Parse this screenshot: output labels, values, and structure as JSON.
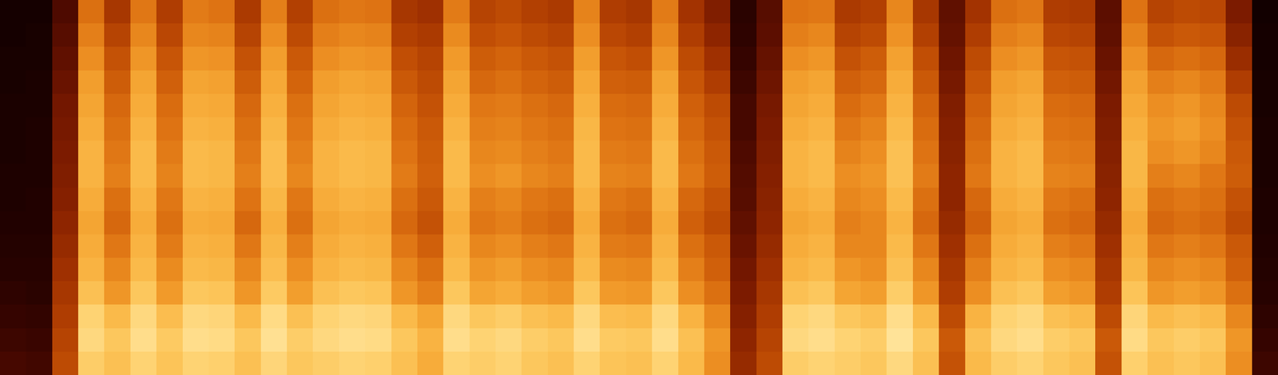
{
  "chart_data": {
    "type": "heatmap",
    "tick_labels": false,
    "value_range": [
      0,
      100
    ],
    "cells": [
      [
        8,
        8,
        24,
        60,
        44,
        62,
        46,
        63,
        61,
        45,
        64,
        47,
        60,
        62,
        61,
        44,
        42,
        63,
        48,
        50,
        47,
        45,
        65,
        46,
        44,
        63,
        43,
        35,
        15,
        26,
        61,
        62,
        45,
        47,
        66,
        44,
        28,
        43,
        60,
        62,
        46,
        45,
        27,
        61,
        48,
        50,
        49,
        34,
        7
      ],
      [
        8,
        9,
        26,
        64,
        48,
        66,
        49,
        66,
        65,
        48,
        68,
        50,
        64,
        66,
        65,
        47,
        45,
        67,
        51,
        53,
        50,
        48,
        68,
        49,
        47,
        66,
        46,
        38,
        16,
        27,
        64,
        66,
        48,
        50,
        69,
        47,
        29,
        46,
        64,
        66,
        49,
        48,
        28,
        65,
        52,
        54,
        53,
        37,
        8
      ],
      [
        9,
        9,
        28,
        68,
        52,
        70,
        53,
        70,
        69,
        52,
        72,
        54,
        68,
        70,
        69,
        51,
        48,
        71,
        55,
        57,
        54,
        52,
        72,
        53,
        51,
        70,
        50,
        42,
        18,
        29,
        68,
        70,
        52,
        55,
        73,
        51,
        31,
        50,
        68,
        70,
        53,
        52,
        30,
        69,
        58,
        60,
        58,
        41,
        8
      ],
      [
        9,
        10,
        30,
        72,
        55,
        74,
        56,
        74,
        73,
        55,
        75,
        57,
        72,
        74,
        73,
        54,
        50,
        74,
        58,
        60,
        57,
        55,
        75,
        56,
        55,
        74,
        53,
        46,
        20,
        31,
        72,
        74,
        56,
        58,
        76,
        54,
        33,
        53,
        72,
        74,
        56,
        55,
        32,
        73,
        64,
        66,
        63,
        46,
        9
      ],
      [
        10,
        10,
        32,
        74,
        58,
        76,
        59,
        76,
        75,
        58,
        77,
        60,
        74,
        76,
        75,
        57,
        52,
        76,
        62,
        63,
        60,
        58,
        77,
        59,
        58,
        76,
        56,
        50,
        22,
        33,
        74,
        76,
        59,
        62,
        78,
        57,
        35,
        56,
        74,
        76,
        59,
        58,
        34,
        75,
        68,
        70,
        66,
        50,
        9
      ],
      [
        10,
        11,
        33,
        76,
        60,
        78,
        61,
        78,
        77,
        60,
        79,
        62,
        76,
        78,
        77,
        59,
        54,
        78,
        64,
        65,
        62,
        60,
        79,
        61,
        60,
        78,
        58,
        52,
        22,
        34,
        76,
        78,
        62,
        65,
        80,
        59,
        36,
        58,
        76,
        78,
        61,
        60,
        35,
        77,
        70,
        72,
        68,
        52,
        10
      ],
      [
        10,
        11,
        34,
        78,
        62,
        80,
        63,
        80,
        79,
        62,
        81,
        64,
        78,
        80,
        79,
        61,
        55,
        80,
        66,
        67,
        64,
        62,
        80,
        63,
        62,
        80,
        60,
        54,
        24,
        35,
        78,
        80,
        65,
        68,
        82,
        61,
        37,
        60,
        78,
        80,
        63,
        62,
        36,
        79,
        68,
        70,
        66,
        54,
        10
      ],
      [
        11,
        11,
        35,
        78,
        64,
        80,
        65,
        80,
        79,
        64,
        81,
        66,
        78,
        80,
        79,
        63,
        56,
        80,
        68,
        70,
        66,
        64,
        80,
        65,
        64,
        80,
        62,
        55,
        25,
        36,
        78,
        80,
        68,
        70,
        82,
        63,
        38,
        62,
        78,
        80,
        65,
        64,
        37,
        79,
        64,
        66,
        62,
        55,
        10
      ],
      [
        11,
        12,
        36,
        76,
        60,
        78,
        62,
        78,
        77,
        61,
        79,
        62,
        76,
        78,
        77,
        60,
        54,
        78,
        64,
        66,
        62,
        60,
        78,
        62,
        60,
        78,
        58,
        52,
        26,
        37,
        76,
        78,
        66,
        68,
        80,
        60,
        38,
        58,
        76,
        78,
        62,
        60,
        38,
        77,
        60,
        62,
        60,
        52,
        11
      ],
      [
        12,
        12,
        38,
        74,
        58,
        76,
        60,
        76,
        75,
        58,
        77,
        60,
        74,
        76,
        75,
        58,
        52,
        76,
        62,
        64,
        60,
        58,
        76,
        60,
        58,
        76,
        56,
        50,
        28,
        38,
        74,
        76,
        64,
        66,
        78,
        58,
        40,
        56,
        74,
        76,
        60,
        58,
        40,
        75,
        58,
        60,
        58,
        50,
        11
      ],
      [
        13,
        13,
        40,
        76,
        62,
        78,
        63,
        78,
        77,
        62,
        79,
        64,
        76,
        78,
        77,
        62,
        56,
        78,
        66,
        68,
        64,
        62,
        78,
        63,
        62,
        78,
        60,
        54,
        30,
        40,
        76,
        78,
        66,
        66,
        80,
        62,
        42,
        60,
        76,
        78,
        64,
        62,
        42,
        77,
        62,
        64,
        62,
        54,
        12
      ],
      [
        14,
        14,
        42,
        78,
        66,
        80,
        67,
        80,
        79,
        66,
        81,
        68,
        78,
        80,
        79,
        66,
        60,
        80,
        70,
        72,
        68,
        66,
        80,
        67,
        66,
        80,
        64,
        56,
        32,
        42,
        78,
        80,
        70,
        68,
        82,
        66,
        44,
        64,
        78,
        80,
        68,
        66,
        44,
        79,
        66,
        68,
        66,
        56,
        13
      ],
      [
        16,
        15,
        44,
        82,
        70,
        84,
        71,
        84,
        83,
        70,
        85,
        72,
        82,
        84,
        83,
        70,
        64,
        84,
        74,
        76,
        72,
        70,
        84,
        71,
        70,
        84,
        68,
        60,
        34,
        44,
        82,
        84,
        74,
        72,
        86,
        70,
        46,
        68,
        82,
        84,
        72,
        70,
        46,
        83,
        70,
        72,
        70,
        60,
        14
      ],
      [
        18,
        17,
        46,
        88,
        80,
        90,
        81,
        90,
        89,
        80,
        91,
        82,
        88,
        90,
        89,
        80,
        74,
        90,
        84,
        86,
        82,
        80,
        90,
        81,
        80,
        90,
        78,
        66,
        36,
        46,
        88,
        90,
        84,
        82,
        92,
        80,
        50,
        78,
        88,
        90,
        82,
        80,
        50,
        89,
        80,
        82,
        80,
        66,
        16
      ],
      [
        20,
        19,
        48,
        90,
        84,
        92,
        85,
        92,
        91,
        84,
        93,
        86,
        90,
        92,
        91,
        84,
        78,
        92,
        88,
        90,
        86,
        84,
        92,
        85,
        84,
        92,
        82,
        70,
        38,
        48,
        90,
        92,
        88,
        86,
        94,
        84,
        54,
        82,
        90,
        92,
        86,
        84,
        54,
        91,
        84,
        86,
        84,
        70,
        18
      ],
      [
        22,
        21,
        50,
        86,
        82,
        88,
        83,
        88,
        87,
        82,
        89,
        84,
        86,
        88,
        87,
        82,
        76,
        88,
        86,
        88,
        84,
        82,
        88,
        83,
        82,
        88,
        80,
        68,
        40,
        50,
        86,
        88,
        86,
        84,
        90,
        82,
        52,
        80,
        86,
        88,
        84,
        82,
        52,
        87,
        82,
        84,
        82,
        68,
        20
      ]
    ]
  }
}
